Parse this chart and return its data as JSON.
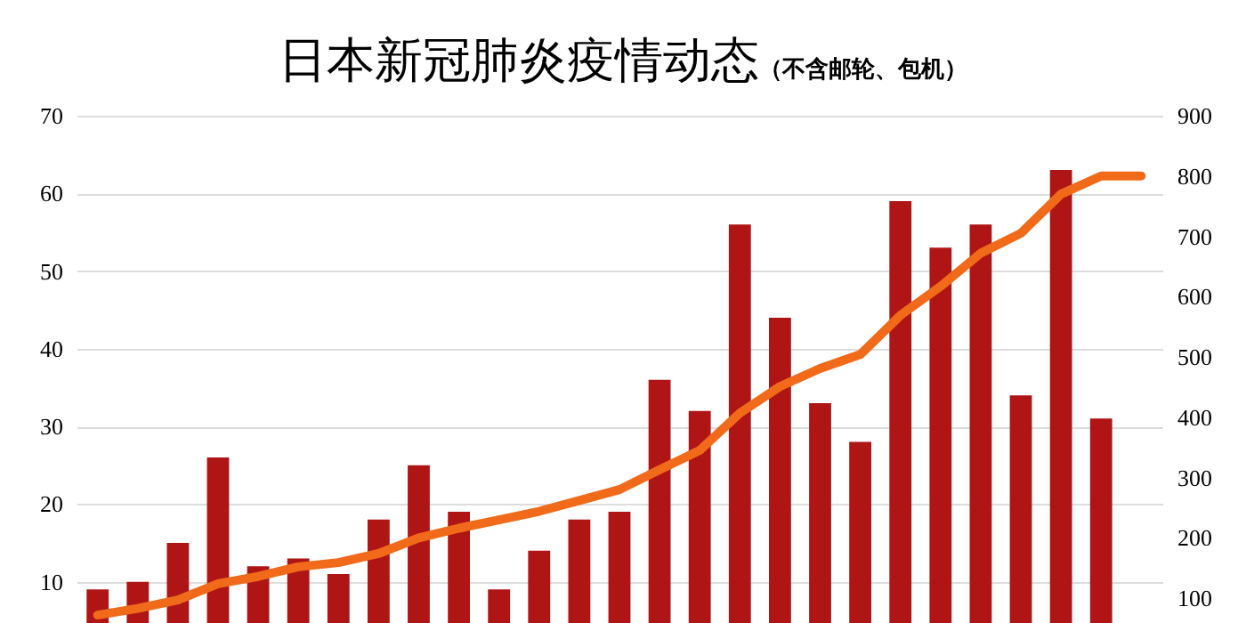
{
  "chart_data": {
    "type": "bar",
    "title": "日本新冠肺炎疫情动态",
    "subtitle": "（不含邮轮、包机）",
    "categories": [
      null,
      null,
      null,
      null,
      null,
      null,
      null,
      null,
      null,
      null,
      null,
      null,
      null,
      null,
      null,
      null,
      null,
      null,
      null,
      null,
      null,
      null,
      null,
      null,
      null,
      null,
      null
    ],
    "series": [
      {
        "color": "#b01515",
        "values": [
          9,
          10,
          15,
          26,
          12,
          13,
          11,
          18,
          25,
          19,
          9,
          14,
          18,
          19,
          36,
          32,
          56,
          44,
          33,
          28,
          59,
          53,
          56,
          34,
          63,
          31,
          null
        ]
      },
      {
        "type": "line",
        "axis": "y2",
        "color": "#f06a1a",
        "values": [
          72,
          83,
          97,
          124,
          136,
          152,
          159,
          174,
          200,
          216,
          230,
          244,
          262,
          280,
          313,
          345,
          407,
          451,
          481,
          504,
          569,
          617,
          672,
          705,
          770,
          800,
          800
        ]
      }
    ],
    "ylim": [
      4,
      70
    ],
    "yticks": [
      10,
      20,
      30,
      40,
      50,
      60,
      70
    ],
    "y2lim": [
      50,
      900
    ],
    "y2ticks": [
      100,
      200,
      300,
      400,
      500,
      600,
      700,
      800,
      900
    ],
    "grid": "y",
    "legend": false,
    "marker": "none",
    "line_style": "solid"
  }
}
